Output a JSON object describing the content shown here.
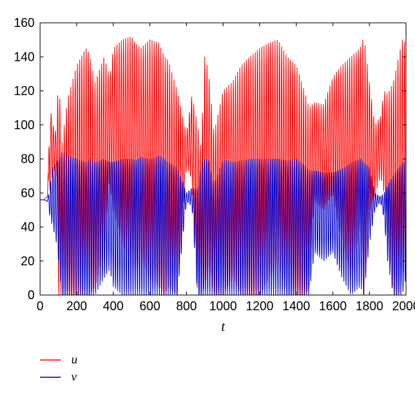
{
  "chart_data": {
    "type": "line",
    "title": "",
    "xlabel": "t",
    "ylabel": "",
    "xlim": [
      0,
      2000
    ],
    "ylim": [
      0,
      160
    ],
    "x_ticks": [
      0,
      200,
      400,
      600,
      800,
      1000,
      1200,
      1400,
      1600,
      1800,
      2000
    ],
    "y_ticks": [
      0,
      20,
      40,
      60,
      80,
      100,
      120,
      140,
      160
    ],
    "grid": false,
    "legend_position": "bottom-left",
    "envelope_x": [
      0,
      20,
      40,
      55,
      70,
      90,
      100,
      120,
      150,
      200,
      250,
      270,
      300,
      350,
      380,
      400,
      450,
      500,
      520,
      550,
      600,
      650,
      680,
      700,
      750,
      800,
      830,
      860,
      880,
      900,
      920,
      950,
      1000,
      1050,
      1100,
      1150,
      1200,
      1250,
      1300,
      1350,
      1400,
      1450,
      1470,
      1500,
      1550,
      1600,
      1650,
      1700,
      1750,
      1770,
      1800,
      1830,
      1860,
      1880,
      1900,
      1930,
      1960,
      1980,
      2000
    ],
    "series": [
      {
        "name": "u",
        "color": "#ff0000",
        "period": 12,
        "upper": [
          56,
          56,
          58,
          110,
          100,
          95,
          132,
          90,
          115,
          135,
          145,
          142,
          125,
          140,
          128,
          145,
          150,
          152,
          148,
          145,
          150,
          148,
          140,
          138,
          120,
          95,
          118,
          100,
          85,
          140,
          132,
          95,
          120,
          125,
          135,
          140,
          145,
          148,
          150,
          140,
          135,
          118,
          110,
          113,
          112,
          128,
          135,
          140,
          145,
          152,
          125,
          100,
          105,
          120,
          118,
          125,
          140,
          150,
          148
        ],
        "lower": [
          56,
          56,
          58,
          62,
          72,
          75,
          0,
          0,
          0,
          0,
          0,
          0,
          5,
          25,
          68,
          50,
          30,
          20,
          15,
          20,
          10,
          5,
          0,
          5,
          0,
          75,
          68,
          0,
          0,
          5,
          18,
          0,
          0,
          10,
          0,
          0,
          0,
          10,
          20,
          0,
          0,
          0,
          5,
          55,
          50,
          60,
          30,
          10,
          40,
          0,
          48,
          58,
          70,
          60,
          35,
          0,
          0,
          10,
          20
        ]
      },
      {
        "name": "v",
        "color": "#0000cc",
        "period": 12,
        "upper": [
          56,
          56,
          55,
          65,
          75,
          78,
          80,
          84,
          82,
          80,
          78,
          80,
          78,
          80,
          78,
          78,
          80,
          80,
          79,
          81,
          80,
          82,
          80,
          78,
          75,
          60,
          63,
          62,
          78,
          80,
          80,
          65,
          80,
          78,
          79,
          80,
          80,
          80,
          80,
          79,
          80,
          76,
          73,
          73,
          72,
          72,
          74,
          78,
          80,
          78,
          75,
          60,
          58,
          60,
          65,
          70,
          75,
          78,
          78
        ],
        "lower": [
          56,
          56,
          55,
          45,
          40,
          30,
          20,
          0,
          0,
          0,
          0,
          0,
          0,
          10,
          15,
          5,
          0,
          0,
          0,
          0,
          0,
          0,
          0,
          0,
          0,
          55,
          52,
          0,
          0,
          0,
          0,
          0,
          0,
          0,
          0,
          0,
          0,
          0,
          0,
          0,
          0,
          0,
          0,
          25,
          20,
          25,
          10,
          0,
          5,
          0,
          30,
          50,
          55,
          45,
          20,
          0,
          0,
          0,
          10
        ]
      }
    ]
  }
}
